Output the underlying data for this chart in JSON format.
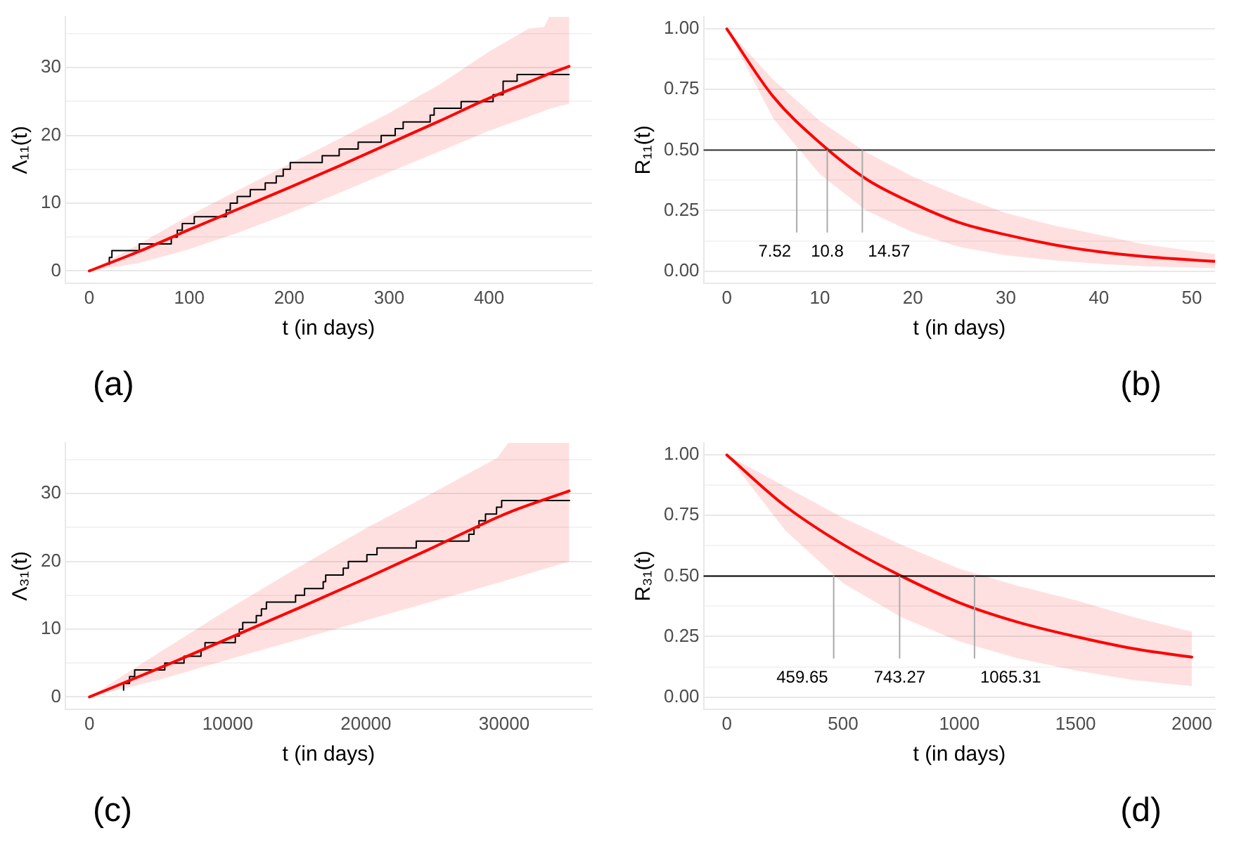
{
  "chart_data": [
    {
      "type": "line",
      "xlabel": "t (in days)",
      "ylabel": "Λ₁₁(t)",
      "xlim": [
        -24,
        503
      ],
      "ylim": [
        -1.8,
        37.5
      ],
      "xticks": [
        0,
        100,
        200,
        300,
        400
      ],
      "yticks": [
        0,
        {
          "value": 5,
          "label": null
        },
        10,
        {
          "value": 15,
          "label": null
        },
        20,
        {
          "value": 25,
          "label": null
        },
        30,
        {
          "value": 35,
          "label": null
        }
      ],
      "grid": "y",
      "annotations": [
        "(a)"
      ],
      "series": [
        {
          "type": "step",
          "color": "#000000",
          "x": [
            20,
            22.6,
            50,
            82,
            88,
            93,
            105,
            137,
            141,
            148,
            161,
            176,
            187,
            194,
            201,
            233,
            250,
            269,
            292,
            306,
            314,
            341,
            345,
            372,
            404,
            414,
            428,
            459,
            480
          ],
          "values": [
            1,
            2,
            3,
            4,
            5,
            6,
            7,
            8,
            9,
            10,
            11,
            12,
            13,
            14,
            15,
            16,
            17,
            18,
            19,
            20,
            21,
            22,
            23,
            24,
            25,
            26,
            28,
            29,
            29
          ]
        },
        {
          "type": "line",
          "color": "#ff0000",
          "x": [
            0,
            50,
            100,
            150,
            200,
            250,
            300,
            350,
            400,
            440,
            455,
            460,
            480
          ],
          "values": [
            0,
            2.9,
            6.1,
            9.2,
            12.3,
            15.5,
            18.8,
            22.1,
            25.5,
            27.9,
            28.8,
            29.1,
            30.2
          ],
          "lower": [
            0,
            1.2,
            3.2,
            5.7,
            8.5,
            11.5,
            14.6,
            17.6,
            20.7,
            22.8,
            23.6,
            23.9,
            24.7
          ],
          "upper": [
            0,
            4,
            8.2,
            12,
            15.8,
            19.5,
            23.3,
            27.5,
            32.4,
            35.8,
            36,
            37.5,
            37.5
          ]
        }
      ]
    },
    {
      "type": "line",
      "xlabel": "t (in days)",
      "ylabel": "R₁₁(t)",
      "xlim": [
        -2.5,
        52.5
      ],
      "ylim": [
        -0.05,
        1.05
      ],
      "xticks": [
        0,
        10,
        20,
        30,
        40,
        50
      ],
      "yticks": [
        {
          "value": 0,
          "label": "0.00"
        },
        {
          "value": 0.125,
          "label": null
        },
        {
          "value": 0.25,
          "label": "0.25"
        },
        {
          "value": 0.375,
          "label": null
        },
        {
          "value": 0.5,
          "label": "0.50"
        },
        {
          "value": 0.625,
          "label": null
        },
        {
          "value": 0.75,
          "label": "0.75"
        },
        {
          "value": 0.875,
          "label": null
        },
        {
          "value": 1,
          "label": "1.00"
        }
      ],
      "grid": "y",
      "annotations": [
        "(b)"
      ],
      "ref_lines": [
        {
          "axis": "y",
          "value": 0.5,
          "color": "#333333"
        },
        {
          "axis": "x",
          "value": 7.52,
          "label": "7.52",
          "color": "#aaaaaa"
        },
        {
          "axis": "x",
          "value": 10.8,
          "label": "10.8",
          "color": "#aaaaaa"
        },
        {
          "axis": "x",
          "value": 14.57,
          "label": "14.57",
          "color": "#aaaaaa"
        }
      ],
      "series": [
        {
          "type": "line",
          "color": "#ff0000",
          "x": [
            0,
            5,
            10,
            15,
            20,
            25,
            30,
            35,
            40,
            45,
            52.5
          ],
          "values": [
            1,
            0.72,
            0.53,
            0.38,
            0.28,
            0.2,
            0.15,
            0.11,
            0.08,
            0.06,
            0.04
          ],
          "lower": [
            1,
            0.63,
            0.4,
            0.25,
            0.16,
            0.1,
            0.065,
            0.045,
            0.03,
            0.02,
            0.012
          ],
          "upper": [
            1,
            0.79,
            0.62,
            0.49,
            0.39,
            0.31,
            0.24,
            0.19,
            0.15,
            0.11,
            0.07
          ]
        }
      ]
    },
    {
      "type": "line",
      "xlabel": "t (in days)",
      "ylabel": "Λ₃₁(t)",
      "xlim": [
        -1745,
        36360
      ],
      "ylim": [
        -1.8,
        37.5
      ],
      "xticks": [
        0,
        10000,
        20000,
        30000
      ],
      "yticks": [
        0,
        {
          "value": 5,
          "label": null
        },
        10,
        {
          "value": 15,
          "label": null
        },
        20,
        {
          "value": 25,
          "label": null
        },
        30,
        {
          "value": 35,
          "label": null
        }
      ],
      "grid": "y",
      "annotations": [
        "(c)"
      ],
      "series": [
        {
          "type": "step",
          "color": "#000000",
          "x": [
            2470,
            2900,
            3270,
            5450,
            6840,
            8070,
            8360,
            10550,
            10840,
            11090,
            12070,
            12440,
            12800,
            14910,
            15560,
            16910,
            17090,
            18360,
            18730,
            20070,
            20800,
            23640,
            27450,
            27820,
            28180,
            28650,
            29450,
            29820,
            33640,
            34730
          ],
          "values": [
            1,
            2,
            3,
            4,
            5,
            6,
            7,
            8,
            9,
            10,
            11,
            12,
            13,
            14,
            15,
            16,
            17,
            18,
            19,
            20,
            21,
            22,
            23,
            24,
            25,
            26,
            27,
            28,
            29,
            29
          ]
        },
        {
          "type": "line",
          "color": "#ff0000",
          "x": [
            0,
            5000,
            10000,
            15000,
            20000,
            25000,
            29500,
            30300,
            34700
          ],
          "values": [
            0,
            4.2,
            8.6,
            13,
            17.5,
            22.2,
            26.5,
            27.2,
            30.4
          ],
          "lower": [
            0,
            2.5,
            5.5,
            8.4,
            11.3,
            14.2,
            16.8,
            17.3,
            20
          ],
          "upper": [
            0,
            6.5,
            12.9,
            19,
            24.9,
            30.3,
            35.3,
            37.5,
            37.5
          ]
        }
      ]
    },
    {
      "type": "line",
      "xlabel": "t (in days)",
      "ylabel": "R₃₁(t)",
      "xlim": [
        -100,
        2100
      ],
      "ylim": [
        -0.05,
        1.05
      ],
      "xticks": [
        0,
        500,
        1000,
        1500,
        2000
      ],
      "yticks": [
        {
          "value": 0,
          "label": "0.00"
        },
        {
          "value": 0.125,
          "label": null
        },
        {
          "value": 0.25,
          "label": "0.25"
        },
        {
          "value": 0.375,
          "label": null
        },
        {
          "value": 0.5,
          "label": "0.50"
        },
        {
          "value": 0.625,
          "label": null
        },
        {
          "value": 0.75,
          "label": "0.75"
        },
        {
          "value": 0.875,
          "label": null
        },
        {
          "value": 1,
          "label": "1.00"
        }
      ],
      "grid": "y",
      "annotations": [
        "(d)"
      ],
      "ref_lines": [
        {
          "axis": "y",
          "value": 0.5,
          "color": "#000000"
        },
        {
          "axis": "x",
          "value": 459.65,
          "label": "459.65",
          "color": "#aaaaaa"
        },
        {
          "axis": "x",
          "value": 743.27,
          "label": "743.27",
          "color": "#aaaaaa"
        },
        {
          "axis": "x",
          "value": 1065.31,
          "label": "1065.31",
          "color": "#aaaaaa"
        }
      ],
      "series": [
        {
          "type": "line",
          "color": "#ff0000",
          "x": [
            0,
            250,
            500,
            750,
            1000,
            1250,
            1500,
            1750,
            2000
          ],
          "values": [
            1,
            0.79,
            0.63,
            0.5,
            0.39,
            0.31,
            0.25,
            0.2,
            0.165
          ],
          "lower": [
            1,
            0.69,
            0.47,
            0.33,
            0.23,
            0.16,
            0.11,
            0.07,
            0.045
          ],
          "upper": [
            1,
            0.87,
            0.74,
            0.63,
            0.53,
            0.46,
            0.4,
            0.33,
            0.27
          ]
        }
      ]
    }
  ]
}
